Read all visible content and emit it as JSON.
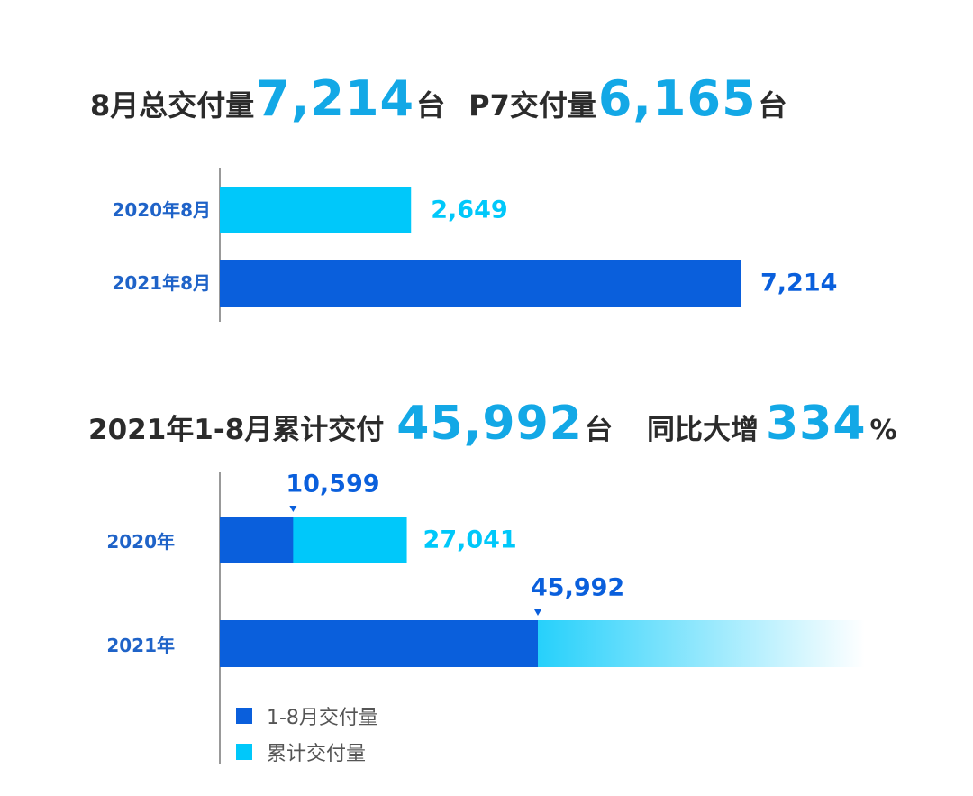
{
  "colors": {
    "dark_blue": "#0a5fdc",
    "light_blue": "#00c8fa",
    "highlight": "#13a8e6",
    "category_text": "#1f63c8",
    "headline_text": "#2b2b2b",
    "axis": "#333333"
  },
  "headline1": {
    "prefix": "8月总交付量",
    "value": "7,214",
    "unit": "台",
    "prefix2": "P7交付量",
    "value2": "6,165",
    "unit2": "台"
  },
  "headline2": {
    "prefix": "2021年1-8月累计交付",
    "value": "45,992",
    "unit": "台",
    "prefix2": "同比大增",
    "value2": "334",
    "unit2": "%"
  },
  "legend": [
    {
      "label": "1-8月交付量",
      "color": "#0a5fdc"
    },
    {
      "label": "累计交付量",
      "color": "#00c8fa"
    }
  ],
  "chart_data": [
    {
      "type": "bar",
      "orientation": "horizontal",
      "categories": [
        "2020年8月",
        "2021年8月"
      ],
      "values": [
        2649,
        7214
      ],
      "value_labels": [
        "2,649",
        "7,214"
      ],
      "bar_colors": [
        "#00c8fa",
        "#0a5fdc"
      ],
      "label_colors": [
        "#00c8fa",
        "#0a5fdc"
      ]
    },
    {
      "type": "bar",
      "orientation": "horizontal",
      "stacked": true,
      "categories": [
        "2020年",
        "2021年"
      ],
      "series": [
        {
          "name": "1-8月交付量",
          "values": [
            10599,
            45992
          ],
          "value_labels": [
            "10,599",
            "45,992"
          ]
        },
        {
          "name": "累计交付量",
          "values": [
            27041,
            null
          ],
          "value_labels": [
            "27,041",
            ""
          ]
        }
      ]
    }
  ]
}
